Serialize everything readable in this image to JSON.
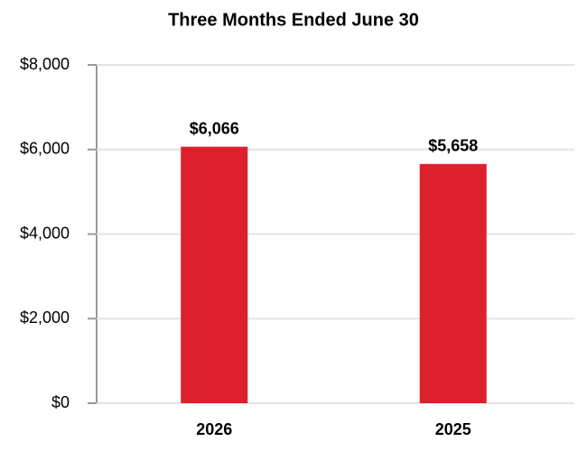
{
  "chart_data": {
    "type": "bar",
    "title": "Three Months Ended June 30",
    "categories": [
      "2026",
      "2025"
    ],
    "values": [
      6066,
      5658
    ],
    "value_labels": [
      "$6,066",
      "$5,658"
    ],
    "color": "#dc202e",
    "ylim": [
      0,
      8000
    ],
    "yticks": [
      {
        "value": 0,
        "label": "$0"
      },
      {
        "value": 2000,
        "label": "$2,000"
      },
      {
        "value": 4000,
        "label": "$4,000"
      },
      {
        "value": 6000,
        "label": "$6,000"
      },
      {
        "value": 8000,
        "label": "$8,000"
      }
    ],
    "grid": true
  }
}
